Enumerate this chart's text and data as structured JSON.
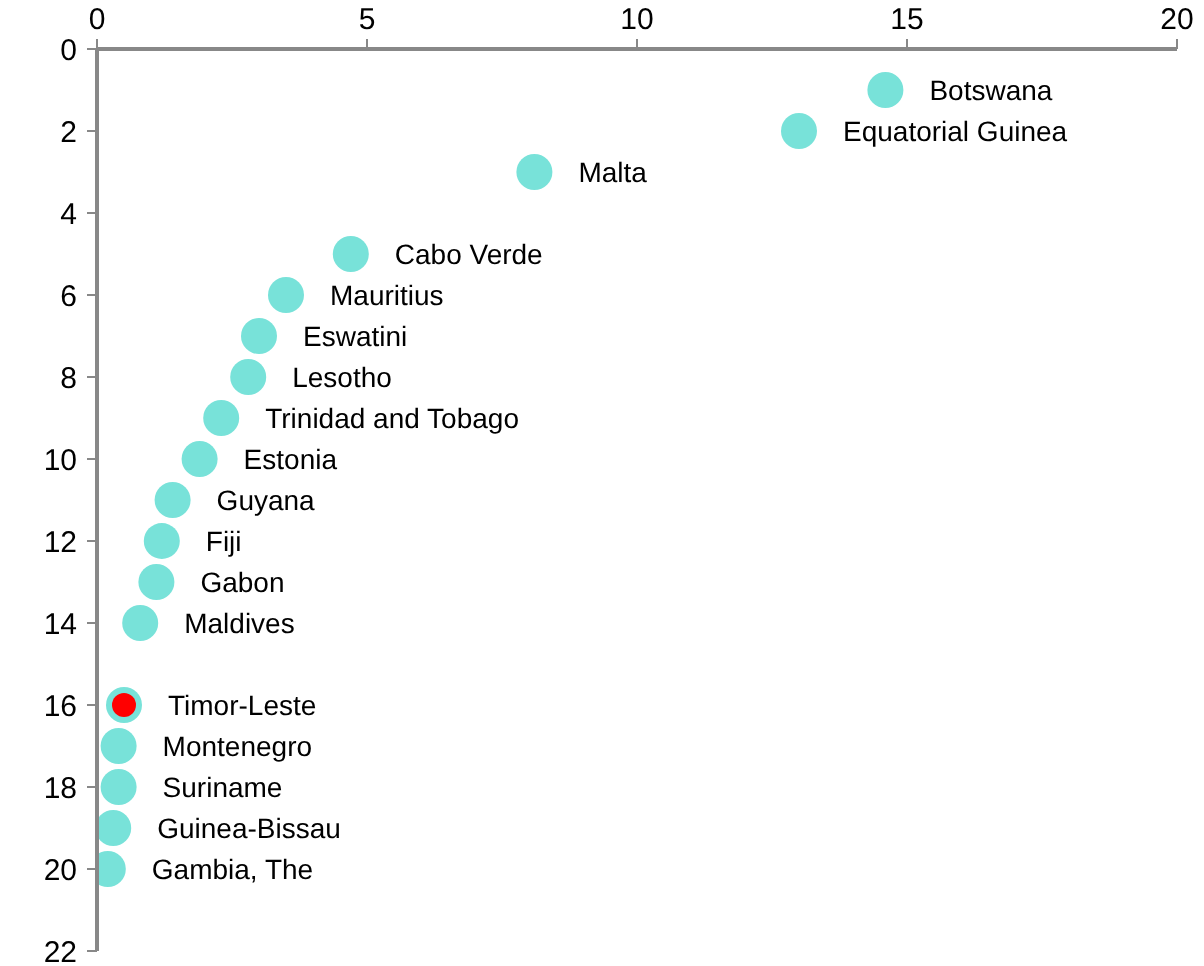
{
  "chart_data": {
    "type": "scatter",
    "xlim": [
      0,
      20
    ],
    "xticks": [
      0,
      5,
      10,
      15,
      20
    ],
    "ylim": [
      22,
      0
    ],
    "yticks": [
      0,
      2,
      4,
      6,
      8,
      10,
      12,
      14,
      16,
      18,
      20,
      22
    ],
    "grid": false,
    "marker": "circle",
    "series": [
      {
        "color": "#78e2d9",
        "x": [
          14.6,
          13.0,
          8.1,
          4.7,
          3.5,
          3.0,
          2.8,
          2.3,
          1.9,
          1.4,
          1.2,
          1.1,
          0.8,
          0.5,
          0.4,
          0.4,
          0.3,
          0.2
        ],
        "values": [
          1,
          2,
          3,
          5,
          6,
          7,
          8,
          9,
          10,
          11,
          12,
          13,
          14,
          16,
          17,
          18,
          19,
          20
        ]
      },
      {
        "color": "#ff0000",
        "x": [
          0.5
        ],
        "values": [
          16
        ]
      }
    ],
    "annotations": [
      {
        "text": "Botswana",
        "x": 14.6,
        "y": 1
      },
      {
        "text": "Equatorial Guinea",
        "x": 13.0,
        "y": 2
      },
      {
        "text": "Malta",
        "x": 8.1,
        "y": 3
      },
      {
        "text": "Cabo Verde",
        "x": 4.7,
        "y": 5
      },
      {
        "text": "Mauritius",
        "x": 3.5,
        "y": 6
      },
      {
        "text": "Eswatini",
        "x": 3.0,
        "y": 7
      },
      {
        "text": "Lesotho",
        "x": 2.8,
        "y": 8
      },
      {
        "text": "Trinidad and Tobago",
        "x": 2.3,
        "y": 9
      },
      {
        "text": "Estonia",
        "x": 1.9,
        "y": 10
      },
      {
        "text": "Guyana",
        "x": 1.4,
        "y": 11
      },
      {
        "text": "Fiji",
        "x": 1.2,
        "y": 12
      },
      {
        "text": "Gabon",
        "x": 1.1,
        "y": 13
      },
      {
        "text": "Maldives",
        "x": 0.8,
        "y": 14
      },
      {
        "text": "Timor-Leste",
        "x": 0.5,
        "y": 16
      },
      {
        "text": "Montenegro",
        "x": 0.4,
        "y": 17
      },
      {
        "text": "Suriname",
        "x": 0.4,
        "y": 18
      },
      {
        "text": "Guinea-Bissau",
        "x": 0.3,
        "y": 19
      },
      {
        "text": "Gambia, The",
        "x": 0.2,
        "y": 20
      }
    ]
  }
}
